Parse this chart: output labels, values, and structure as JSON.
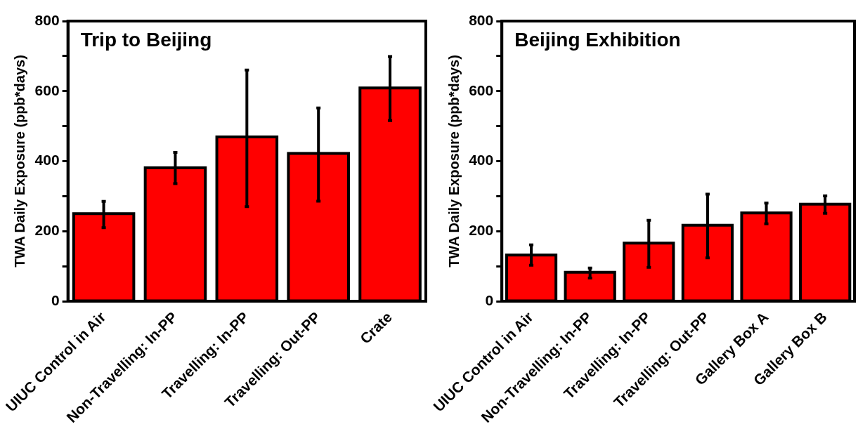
{
  "chart_data": [
    {
      "type": "bar",
      "title": "Trip to Beijing",
      "ylabel": "TWA Daily Exposure (ppb*days)",
      "categories": [
        "UIUC Control in Air",
        "Non-Travelling: In-PP",
        "Travelling: In-PP",
        "Travelling: Out-PP",
        "Crate"
      ],
      "values": [
        250,
        381,
        469,
        422,
        609
      ],
      "color": "#ff0000",
      "errors": [
        [
          210,
          285
        ],
        [
          336,
          425
        ],
        [
          270,
          660
        ],
        [
          286,
          552
        ],
        [
          516,
          699
        ]
      ],
      "ylim": [
        0,
        800
      ],
      "yticks": [
        0,
        {
          "value": 100,
          "label": null
        },
        200,
        {
          "value": 300,
          "label": null
        },
        400,
        {
          "value": 500,
          "label": null
        },
        600,
        {
          "value": 700,
          "label": null
        },
        800
      ],
      "grid": false,
      "legend": false
    },
    {
      "type": "bar",
      "title": "Beijing Exhibition",
      "ylabel": "TWA Daily Exposure (ppb*days)",
      "categories": [
        "UIUC Control in Air",
        "Non-Travelling: In-PP",
        "Travelling: In-PP",
        "Travelling: Out-PP",
        "Gallery Box A",
        "Gallery Box B"
      ],
      "values": [
        132,
        83,
        166,
        217,
        252,
        277
      ],
      "color": "#ff0000",
      "errors": [
        [
          103,
          161
        ],
        [
          66,
          95
        ],
        [
          97,
          231
        ],
        [
          124,
          306
        ],
        [
          221,
          280
        ],
        [
          251,
          301
        ]
      ],
      "ylim": [
        0,
        800
      ],
      "yticks": [
        0,
        {
          "value": 100,
          "label": null
        },
        200,
        {
          "value": 300,
          "label": null
        },
        400,
        {
          "value": 500,
          "label": null
        },
        600,
        {
          "value": 700,
          "label": null
        },
        800
      ],
      "grid": false,
      "legend": false
    }
  ]
}
